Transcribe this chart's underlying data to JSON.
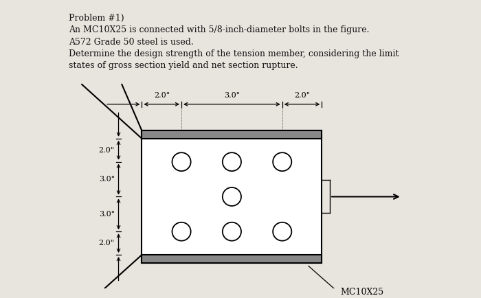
{
  "title_lines": [
    "Problem #1)",
    "An MC10X25 is connected with 5/8-inch-diameter bolts in the figure.",
    "A572 Grade 50 steel is used.",
    "Determine the design strength of the tension member, considering the limit",
    "states of gross section yield and net section rupture."
  ],
  "bg_color": "#e8e4de",
  "text_color": "#111111",
  "mc_label": "MC10X25",
  "dim_top": [
    "2.0\"",
    "3.0\"",
    "2.0\""
  ],
  "dim_left": [
    "2.0\"",
    "3.0\"",
    "3.0\"",
    "2.0\""
  ]
}
